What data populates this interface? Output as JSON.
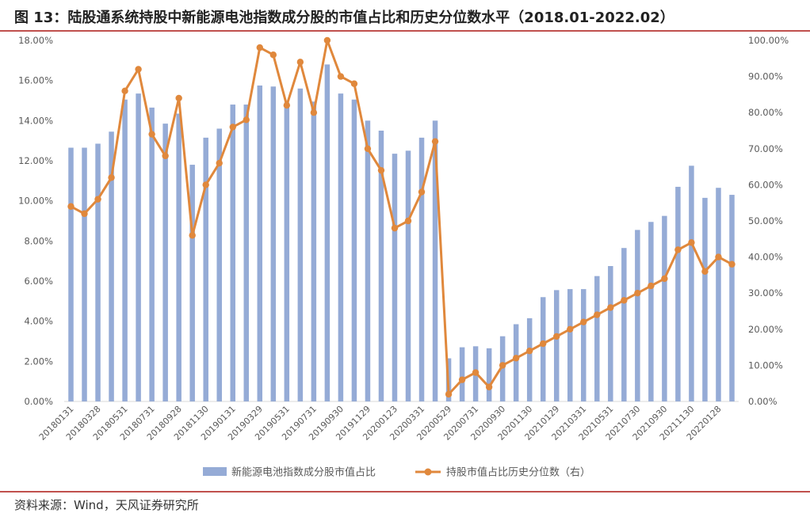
{
  "title": "图 13：陆股通系统持股中新能源电池指数成分股的市值占比和历史分位数水平（2018.01-2022.02）",
  "source": "资料来源：Wind，天风证券研究所",
  "colors": {
    "bar": "#95abd6",
    "line": "#e0883c",
    "rule": "#c0504d"
  },
  "chart_data": {
    "type": "bar+line",
    "title": "",
    "xlabel": "",
    "ylabel": "",
    "ylim": [
      0,
      18
    ],
    "y2lim": [
      0,
      100
    ],
    "yticks": [
      "0.00%",
      "2.00%",
      "4.00%",
      "6.00%",
      "8.00%",
      "10.00%",
      "12.00%",
      "14.00%",
      "16.00%",
      "18.00%"
    ],
    "y2ticks": [
      "0.00%",
      "10.00%",
      "20.00%",
      "30.00%",
      "40.00%",
      "50.00%",
      "60.00%",
      "70.00%",
      "80.00%",
      "90.00%",
      "100.00%"
    ],
    "x_tick_labels": [
      "20180131",
      "20180328",
      "20180531",
      "20180731",
      "20180928",
      "20181130",
      "20190131",
      "20190329",
      "20190531",
      "20190731",
      "20190930",
      "20191129",
      "20200123",
      "20200331",
      "20200529",
      "20200731",
      "20200930",
      "20201130",
      "20210129",
      "20210331",
      "20210531",
      "20210730",
      "20210930",
      "20211130",
      "20220128"
    ],
    "legend_position": "bottom",
    "series": [
      {
        "name": "新能源电池指数成分股市值占比",
        "type": "bar",
        "axis": "left",
        "values": [
          12.65,
          12.65,
          12.85,
          13.45,
          15.05,
          15.35,
          14.65,
          13.85,
          14.35,
          11.8,
          13.15,
          13.6,
          14.8,
          14.8,
          15.75,
          15.7,
          14.9,
          15.6,
          14.95,
          16.8,
          15.35,
          15.05,
          14.0,
          13.5,
          12.35,
          12.5,
          13.15,
          14.0,
          2.15,
          2.7,
          2.75,
          2.65,
          3.25,
          3.85,
          4.15,
          5.2,
          5.55,
          5.6,
          5.6,
          6.25,
          6.75,
          7.65,
          8.55,
          8.95,
          9.25,
          10.7,
          11.75,
          10.15,
          10.65,
          10.3
        ]
      },
      {
        "name": "持股市值占比历史分位数（右）",
        "type": "line",
        "axis": "right",
        "values": [
          54,
          52,
          56,
          62,
          86,
          92,
          74,
          68,
          84,
          46,
          60,
          66,
          76,
          78,
          98,
          96,
          82,
          94,
          80,
          100,
          90,
          88,
          70,
          64,
          48,
          50,
          58,
          72,
          2,
          6,
          8,
          4,
          10,
          12,
          14,
          16,
          18,
          20,
          22,
          24,
          26,
          28,
          30,
          32,
          34,
          42,
          44,
          36,
          40,
          38
        ]
      }
    ]
  }
}
